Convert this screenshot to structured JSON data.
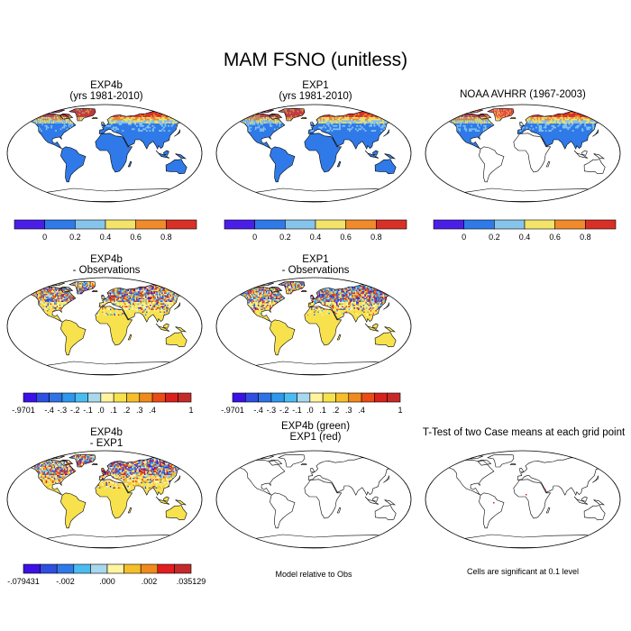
{
  "figure": {
    "title": "MAM FSNO (unitless)"
  },
  "panels": [
    {
      "title_line1": "EXP4b",
      "title_line2": "(yrs 1981-2010)",
      "fill": "snow"
    },
    {
      "title_line1": "EXP1",
      "title_line2": "(yrs 1981-2010)",
      "fill": "snow"
    },
    {
      "title_line1": "NOAA AVHRR (1967-2003)",
      "title_line2": "",
      "fill": "obs"
    },
    {
      "title_line1": "EXP4b",
      "title_line2": "- Observations",
      "fill": "diff"
    },
    {
      "title_line1": "EXP1",
      "title_line2": "- Observations",
      "fill": "diff"
    },
    {
      "title_line1": "EXP4b",
      "title_line2": "- EXP1",
      "fill": "diff2"
    },
    {
      "title_line1": "EXP4b (green)",
      "title_line2": "EXP1 (red)",
      "fill": "none"
    },
    {
      "title_line1": "T-Test of two Case means at each grid point",
      "title_line2": "",
      "fill": "none"
    }
  ],
  "captions": {
    "relative": "Model relative to Obs",
    "significance": "Cells are significant at 0.1 level"
  },
  "colorbars": {
    "snow": {
      "colors": [
        "#4b1ee8",
        "#2f7ae8",
        "#86c4ec",
        "#f4e36a",
        "#f08a2a",
        "#d83026"
      ],
      "labels": [
        "0",
        "0.2",
        "0.4",
        "0.6",
        "0.8"
      ]
    },
    "diff": {
      "colors": [
        "#3d10e6",
        "#2e4fe0",
        "#2f72e6",
        "#2f98ec",
        "#4bbcf0",
        "#a8d8ee",
        "#fff4a0",
        "#f7e24e",
        "#f4bf2a",
        "#f08a1c",
        "#ea4a16",
        "#d8201c",
        "#c42a2a"
      ],
      "labels": [
        "-.9701",
        "-.4",
        "-.3",
        "-.2",
        "-.1",
        ".0",
        ".1",
        ".2",
        ".3",
        ".4",
        "1"
      ]
    },
    "diff2": {
      "colors": [
        "#3d10e6",
        "#2e4fe0",
        "#2f7ae8",
        "#4bbcf0",
        "#a8d8ee",
        "#fff4a0",
        "#f4bf2a",
        "#f08a1c",
        "#e21e1e",
        "#c42a2a"
      ],
      "labels": [
        "-.079431",
        "-.002",
        ".000",
        ".002",
        ".035129"
      ]
    }
  }
}
